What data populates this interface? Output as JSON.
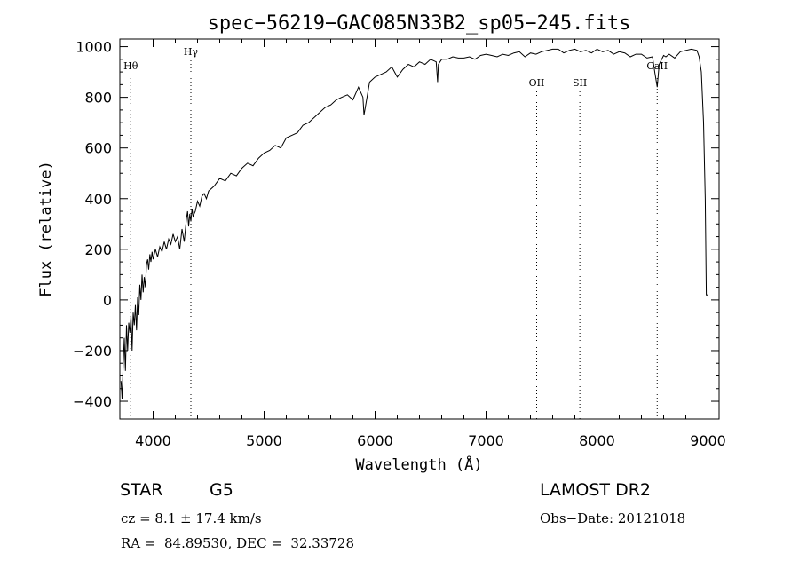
{
  "chart_data": {
    "type": "line",
    "title": "spec−56219−GAC085N33B2_sp05−245.fits",
    "xlabel": "Wavelength (Å)",
    "ylabel": "Flux (relative)",
    "xlim": [
      3700,
      9100
    ],
    "ylim": [
      -470,
      1030
    ],
    "xticks": [
      4000,
      5000,
      6000,
      7000,
      8000,
      9000
    ],
    "yticks": [
      -400,
      -200,
      0,
      200,
      400,
      600,
      800,
      1000
    ],
    "xtick_labels": [
      "4000",
      "5000",
      "6000",
      "7000",
      "8000",
      "9000"
    ],
    "ytick_labels": [
      "−400",
      "−200",
      "0",
      "200",
      "400",
      "600",
      "800",
      "1000"
    ],
    "grid": false,
    "line_markers": [
      {
        "label": "Hθ",
        "wavelength": 3798
      },
      {
        "label": "Hγ",
        "wavelength": 4340
      },
      {
        "label": "OII",
        "wavelength": 7456
      },
      {
        "label": "SII",
        "wavelength": 7845
      },
      {
        "label": "CaII",
        "wavelength": 8542
      }
    ],
    "series": [
      {
        "x": [
          3710,
          3720,
          3730,
          3740,
          3750,
          3760,
          3770,
          3780,
          3790,
          3800,
          3810,
          3820,
          3830,
          3840,
          3850,
          3860,
          3870,
          3880,
          3890,
          3900,
          3910,
          3920,
          3930,
          3940,
          3950,
          3960,
          3970,
          3980,
          3990,
          4000,
          4020,
          4040,
          4060,
          4080,
          4100,
          4120,
          4140,
          4160,
          4180,
          4200,
          4220,
          4240,
          4260,
          4280,
          4300,
          4310,
          4320,
          4330,
          4340,
          4350,
          4360,
          4380,
          4400,
          4420,
          4440,
          4460,
          4480,
          4500,
          4550,
          4600,
          4650,
          4700,
          4750,
          4800,
          4850,
          4900,
          4950,
          5000,
          5050,
          5100,
          5150,
          5200,
          5250,
          5300,
          5350,
          5400,
          5450,
          5500,
          5550,
          5600,
          5650,
          5700,
          5750,
          5800,
          5850,
          5890,
          5900,
          5950,
          6000,
          6050,
          6100,
          6150,
          6200,
          6250,
          6300,
          6350,
          6400,
          6450,
          6500,
          6550,
          6563,
          6570,
          6600,
          6650,
          6700,
          6750,
          6800,
          6850,
          6900,
          6950,
          7000,
          7050,
          7100,
          7150,
          7200,
          7250,
          7300,
          7350,
          7400,
          7450,
          7500,
          7550,
          7600,
          7650,
          7700,
          7750,
          7800,
          7850,
          7900,
          7950,
          8000,
          8050,
          8100,
          8150,
          8200,
          8250,
          8300,
          8350,
          8400,
          8450,
          8500,
          8520,
          8542,
          8560,
          8600,
          8620,
          8650,
          8700,
          8750,
          8800,
          8850,
          8900,
          8920,
          8940,
          8960,
          8975,
          8985,
          9000
        ],
        "y": [
          -320,
          -390,
          -250,
          -150,
          -280,
          -100,
          -200,
          -90,
          -130,
          -60,
          -200,
          -50,
          -100,
          -20,
          -120,
          10,
          -60,
          60,
          0,
          100,
          30,
          90,
          50,
          140,
          160,
          120,
          180,
          150,
          190,
          160,
          200,
          170,
          210,
          190,
          230,
          200,
          240,
          220,
          260,
          230,
          250,
          200,
          280,
          230,
          320,
          350,
          290,
          340,
          310,
          360,
          330,
          350,
          390,
          370,
          410,
          420,
          400,
          430,
          450,
          480,
          470,
          500,
          490,
          520,
          540,
          530,
          560,
          580,
          590,
          610,
          600,
          640,
          650,
          660,
          690,
          700,
          720,
          740,
          760,
          770,
          790,
          800,
          810,
          790,
          840,
          800,
          730,
          860,
          880,
          890,
          900,
          920,
          880,
          910,
          930,
          920,
          940,
          930,
          950,
          940,
          860,
          930,
          950,
          950,
          960,
          955,
          955,
          960,
          950,
          965,
          970,
          965,
          960,
          970,
          965,
          975,
          980,
          960,
          975,
          970,
          980,
          985,
          990,
          990,
          975,
          985,
          990,
          980,
          985,
          975,
          990,
          980,
          985,
          970,
          980,
          975,
          960,
          970,
          970,
          955,
          960,
          900,
          840,
          930,
          965,
          960,
          970,
          955,
          980,
          985,
          990,
          985,
          960,
          900,
          700,
          400,
          20,
          20
        ]
      }
    ]
  },
  "info": {
    "class_label": "STAR",
    "subclass_label": "G5",
    "survey_label": "LAMOST DR2",
    "cz_text": "cz = 8.1 ± 17.4 km/s",
    "obs_date_text": "Obs−Date: 20121018",
    "coords_text": "RA =  84.89530, DEC =  32.33728"
  }
}
